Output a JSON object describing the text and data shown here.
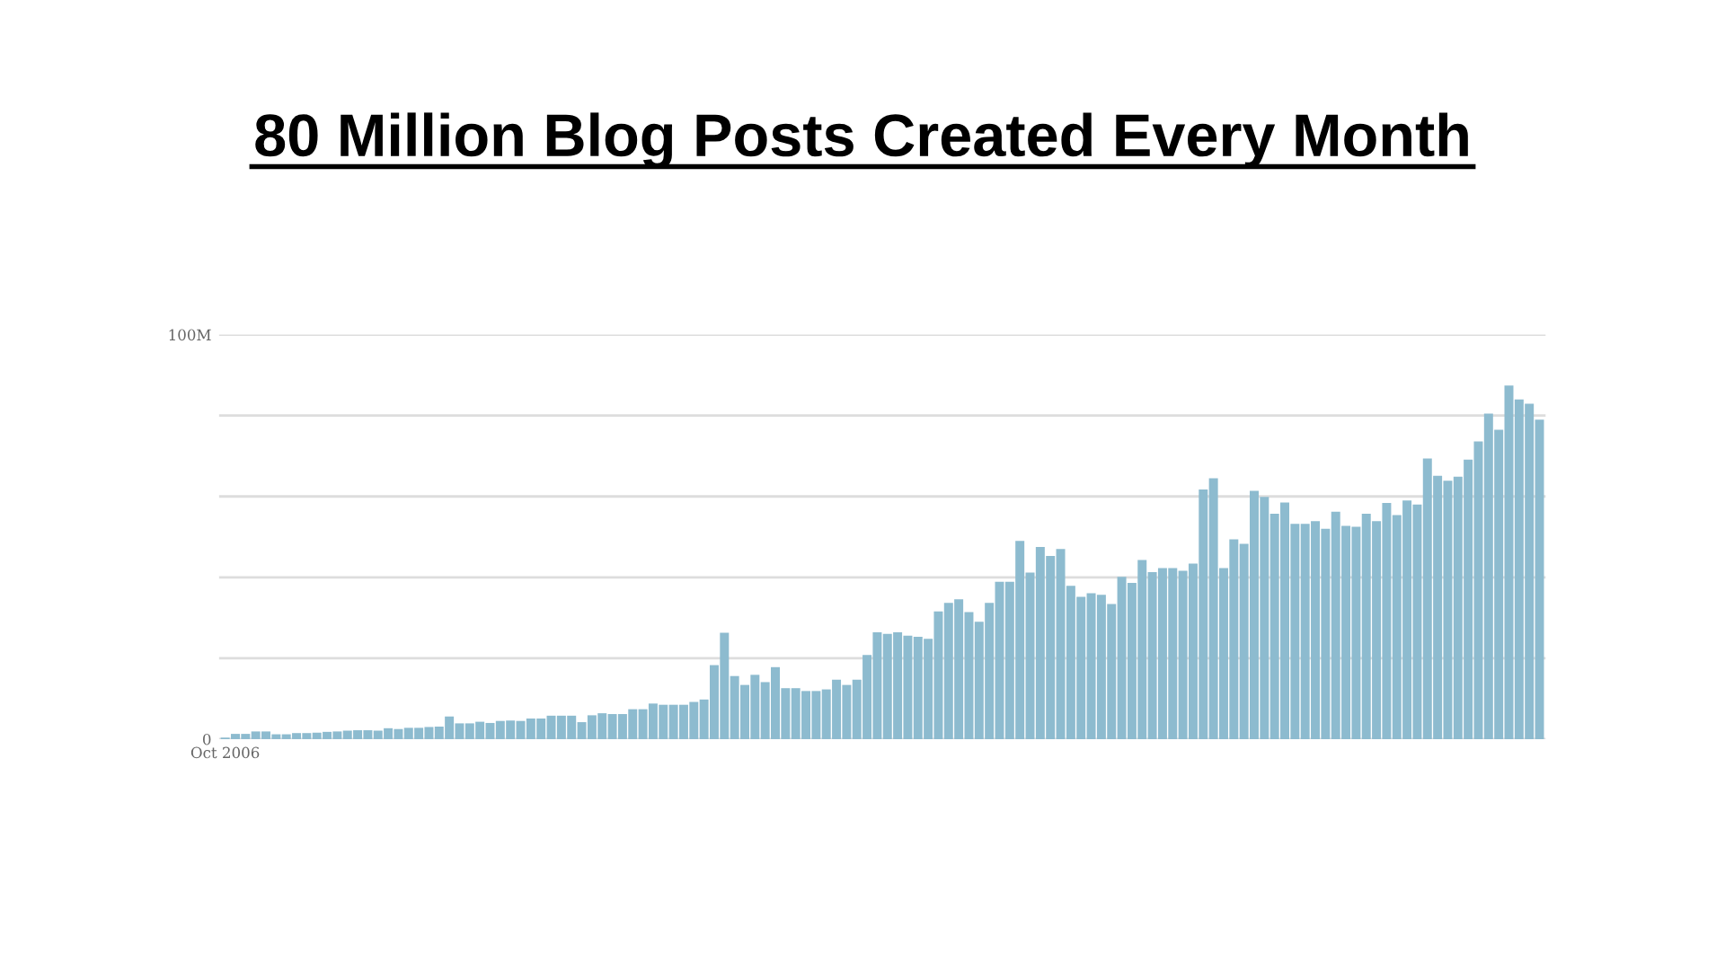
{
  "chart_data": {
    "type": "bar",
    "title": "80 Million Blog Posts Created Every Month",
    "categories": [
      "Oct 2006",
      null,
      null,
      null,
      null,
      null,
      null,
      null,
      null,
      null,
      null,
      null,
      null,
      null,
      null,
      null,
      null,
      null,
      null,
      null,
      null,
      null,
      null,
      null,
      null,
      null,
      null,
      null,
      null,
      null,
      null,
      null,
      null,
      null,
      null,
      null,
      null,
      null,
      null,
      null,
      null,
      null,
      null,
      null,
      null,
      null,
      null,
      null,
      null,
      null,
      null,
      null,
      null,
      null,
      null,
      null,
      null,
      null,
      null,
      null,
      null,
      null,
      null,
      null,
      null,
      null,
      null,
      null,
      null,
      null,
      null,
      null,
      null,
      null,
      null,
      null,
      null,
      null,
      null,
      null,
      null,
      null,
      null,
      null,
      null,
      null,
      null,
      null,
      null,
      null,
      null,
      null,
      null,
      null,
      null,
      null,
      null,
      null,
      null,
      null,
      null,
      null,
      null,
      null,
      null,
      null,
      null,
      null,
      null,
      null,
      null,
      null,
      null,
      null,
      null,
      null,
      null,
      null,
      null,
      null,
      null,
      null,
      null,
      null,
      null,
      null,
      null,
      null,
      null,
      null
    ],
    "values": [
      0.4,
      1.3,
      1.3,
      1.9,
      1.9,
      1.2,
      1.2,
      1.5,
      1.5,
      1.6,
      1.8,
      1.9,
      2.1,
      2.2,
      2.2,
      2.1,
      2.7,
      2.5,
      2.8,
      2.8,
      3.0,
      3.1,
      5.6,
      3.9,
      3.9,
      4.3,
      4.0,
      4.5,
      4.6,
      4.5,
      5.1,
      5.1,
      5.8,
      5.8,
      5.8,
      4.2,
      5.9,
      6.4,
      6.2,
      6.2,
      7.4,
      7.4,
      8.8,
      8.5,
      8.5,
      8.5,
      9.2,
      9.8,
      18.3,
      26.3,
      15.6,
      13.4,
      15.9,
      14.1,
      17.8,
      12.6,
      12.6,
      11.9,
      11.9,
      12.3,
      14.7,
      13.4,
      14.7,
      20.8,
      26.4,
      26.0,
      26.4,
      25.6,
      25.3,
      24.8,
      31.6,
      33.7,
      34.6,
      31.4,
      29.0,
      33.7,
      38.9,
      38.9,
      49.0,
      41.2,
      47.5,
      45.3,
      47.0,
      37.9,
      35.2,
      36.1,
      35.7,
      33.4,
      40.1,
      38.6,
      44.3,
      41.3,
      42.3,
      42.3,
      41.6,
      43.4,
      61.7,
      64.5,
      42.3,
      49.4,
      48.3,
      61.4,
      59.9,
      55.7,
      58.5,
      53.2,
      53.2,
      53.9,
      52.0,
      56.2,
      52.7,
      52.5,
      55.7,
      53.9,
      58.4,
      55.4,
      59.0,
      58.0,
      69.4,
      65.1,
      63.9,
      64.9,
      69.1,
      73.6,
      80.5,
      76.5,
      87.4,
      84.0,
      82.9,
      79.0
    ],
    "color": "#8dbbcf",
    "ylim": [
      0,
      100
    ],
    "yticks": [
      0,
      {
        "value": 20,
        "label": null
      },
      {
        "value": 40,
        "label": null
      },
      {
        "value": 60,
        "label": null
      },
      {
        "value": 80,
        "label": null
      },
      {
        "value": 100,
        "label": "100M"
      }
    ],
    "grid": "y"
  }
}
